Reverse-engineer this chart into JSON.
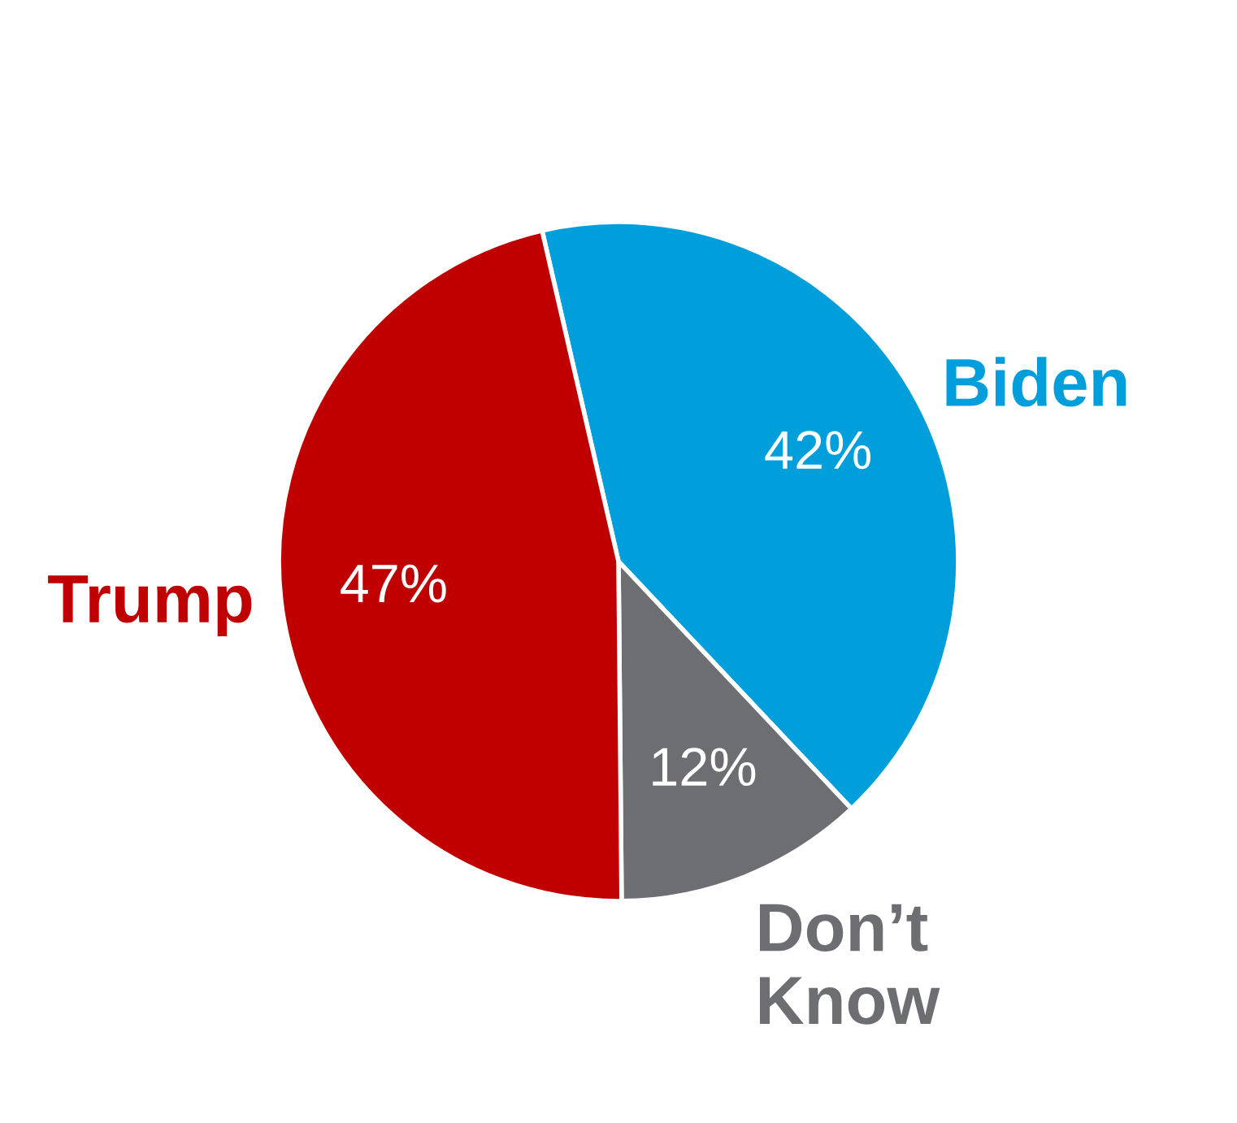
{
  "chart_data": {
    "type": "pie",
    "categories": [
      "Biden",
      "Don’t\nKnow",
      "Trump"
    ],
    "values": [
      42,
      12,
      47
    ],
    "colors": [
      "#009fdb",
      "#6d6e71",
      "#c00000"
    ],
    "value_labels": [
      "42%",
      "12%",
      "47%"
    ]
  }
}
